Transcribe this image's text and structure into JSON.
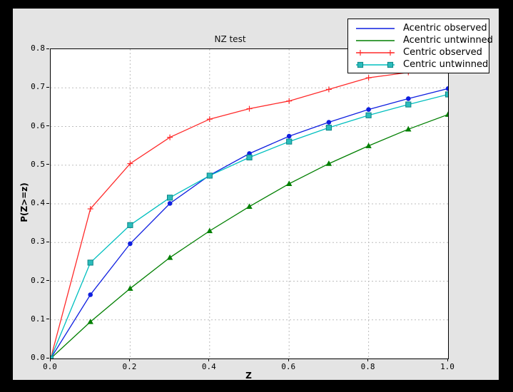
{
  "window": {
    "background": "#000000",
    "figure_background": "#e4e4e4",
    "plot_background": "#ffffff"
  },
  "chart_data": {
    "type": "line",
    "title": "NZ test",
    "xlabel": "Z",
    "ylabel": "P(Z>=z)",
    "xlim": [
      0.0,
      1.0
    ],
    "ylim": [
      0.0,
      0.8
    ],
    "xtick_labels": [
      "0.0",
      "0.2",
      "0.4",
      "0.6",
      "0.8",
      "1.0"
    ],
    "xtick_values": [
      0.0,
      0.2,
      0.4,
      0.6,
      0.8,
      1.0
    ],
    "ytick_labels": [
      "0.0",
      "0.1",
      "0.2",
      "0.3",
      "0.4",
      "0.5",
      "0.6",
      "0.7",
      "0.8"
    ],
    "ytick_values": [
      0.0,
      0.1,
      0.2,
      0.3,
      0.4,
      0.5,
      0.6,
      0.7,
      0.8
    ],
    "grid": {
      "shown": true,
      "style": "dashed",
      "color": "#bdbdbd",
      "x_values": [
        0.2,
        0.4,
        0.6,
        0.8
      ],
      "y_values": [
        0.1,
        0.2,
        0.3,
        0.4,
        0.5,
        0.6,
        0.7
      ]
    },
    "x": [
      0.0,
      0.1,
      0.2,
      0.3,
      0.4,
      0.5,
      0.6,
      0.7,
      0.8,
      0.9,
      1.0
    ],
    "series": [
      {
        "name": "Acentric observed",
        "color": "#0f1fe0",
        "marker": "circle",
        "legend_marker": "none",
        "values": [
          0.0,
          0.165,
          0.297,
          0.401,
          0.474,
          0.53,
          0.575,
          0.611,
          0.644,
          0.672,
          0.698
        ]
      },
      {
        "name": "Acentric untwinned",
        "color": "#007f00",
        "marker": "triangle",
        "legend_marker": "none",
        "values": [
          0.0,
          0.095,
          0.181,
          0.261,
          0.33,
          0.393,
          0.452,
          0.504,
          0.55,
          0.593,
          0.631
        ]
      },
      {
        "name": "Centric observed",
        "color": "#ff2a2a",
        "marker": "plus",
        "legend_marker": "plus",
        "values": [
          0.0,
          0.387,
          0.504,
          0.572,
          0.619,
          0.646,
          0.666,
          0.696,
          0.726,
          0.74,
          0.776
        ]
      },
      {
        "name": "Centric untwinned",
        "color": "#00bfbf",
        "marker": "square",
        "marker_fill": "#2bbcbc",
        "marker_edge": "#0c8585",
        "legend_marker": "square",
        "values": [
          0.0,
          0.248,
          0.345,
          0.416,
          0.473,
          0.52,
          0.561,
          0.597,
          0.629,
          0.657,
          0.683
        ]
      }
    ],
    "legend": {
      "position": "top-right",
      "entries": [
        "Acentric observed",
        "Acentric untwinned",
        "Centric observed",
        "Centric untwinned"
      ]
    }
  }
}
